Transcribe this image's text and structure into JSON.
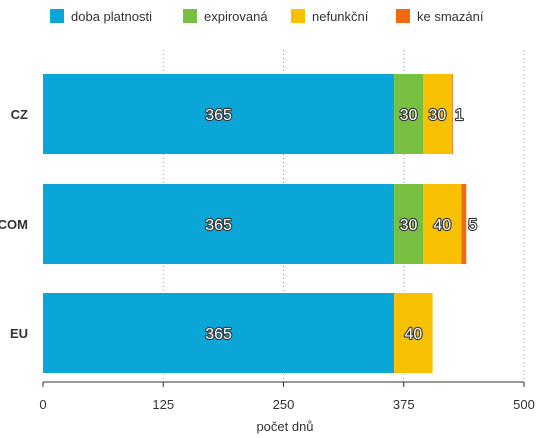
{
  "chart_data": {
    "type": "bar",
    "orientation": "horizontal",
    "stacked": true,
    "categories": [
      "CZ",
      "COM",
      "EU"
    ],
    "series": [
      {
        "name": "doba platnosti",
        "color": "#0aa6d8",
        "values": [
          365,
          365,
          365
        ]
      },
      {
        "name": "expirovaná",
        "color": "#77bf40",
        "values": [
          30,
          30,
          0
        ]
      },
      {
        "name": "nefunkční",
        "color": "#f7c000",
        "values": [
          30,
          40,
          40
        ]
      },
      {
        "name": "ke smazání",
        "color": "#f26a0f",
        "values": [
          1,
          5,
          0
        ]
      }
    ],
    "data_labels": [
      [
        "365",
        "30",
        "30",
        "1"
      ],
      [
        "365",
        "30",
        "40",
        "5"
      ],
      [
        "365",
        "",
        "40",
        ""
      ]
    ],
    "xlabel": "počet dnů",
    "ylabel": "",
    "xlim": [
      0,
      500
    ],
    "xticks": [
      "0",
      "125",
      "250",
      "375",
      "500"
    ],
    "grid": "vertical dotted",
    "legend_position": "top"
  }
}
